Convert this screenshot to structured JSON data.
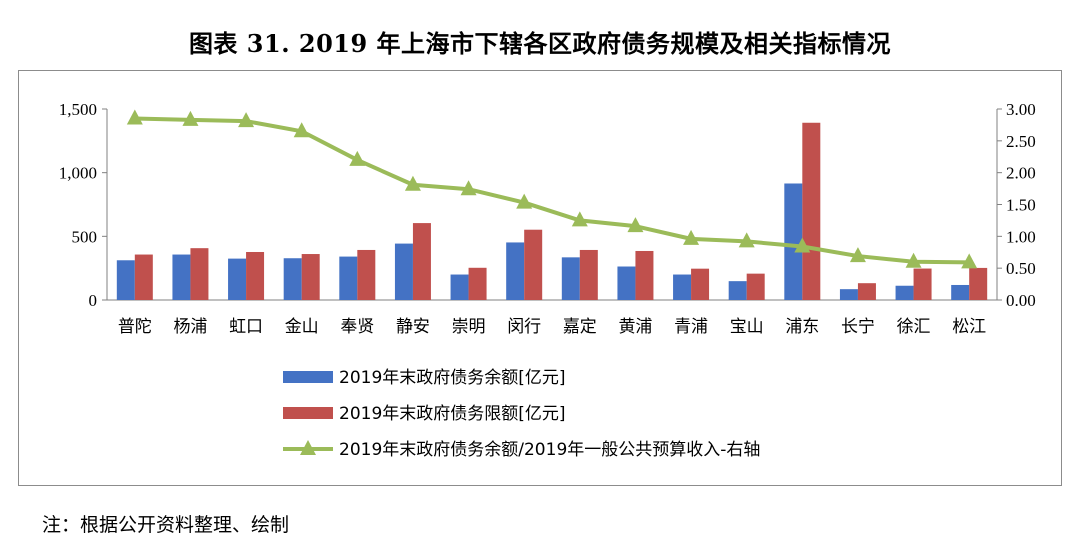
{
  "title": "图表 31. 2019 年上海市下辖各区政府债务规模及相关指标情况",
  "note": "注：根据公开资料整理、绘制",
  "chart_data": {
    "type": "bar",
    "categories": [
      "普陀",
      "杨浦",
      "虹口",
      "金山",
      "奉贤",
      "静安",
      "崇明",
      "闵行",
      "嘉定",
      "黄浦",
      "青浦",
      "宝山",
      "浦东",
      "长宁",
      "徐汇",
      "松江"
    ],
    "series": [
      {
        "name": "2019年末政府债务余额[亿元]",
        "type": "bar",
        "axis": "left",
        "color": "#4472C4",
        "values": [
          312,
          357,
          325,
          328,
          341,
          443,
          200,
          452,
          335,
          263,
          200,
          148,
          915,
          85,
          112,
          118
        ]
      },
      {
        "name": "2019年末政府债务限额[亿元]",
        "type": "bar",
        "axis": "left",
        "color": "#C0504D",
        "values": [
          357,
          407,
          377,
          361,
          393,
          604,
          253,
          552,
          393,
          385,
          246,
          207,
          1392,
          132,
          247,
          252
        ]
      },
      {
        "name": "2019年末政府债务余额/2019年一般公共预算收入-右轴",
        "type": "line",
        "axis": "right",
        "color": "#9BBB59",
        "values": [
          2.85,
          2.83,
          2.81,
          2.65,
          2.2,
          1.81,
          1.74,
          1.53,
          1.25,
          1.16,
          0.96,
          0.92,
          0.84,
          0.69,
          0.6,
          0.59
        ]
      }
    ],
    "y_left": {
      "ticks": [
        "0",
        "500",
        "1,000",
        "1,500"
      ],
      "ylim": [
        0,
        1500
      ]
    },
    "y_right": {
      "ticks": [
        "0.00",
        "0.50",
        "1.00",
        "1.50",
        "2.00",
        "2.50",
        "3.00"
      ],
      "ylim": [
        0,
        3
      ]
    },
    "legend_position": "bottom"
  }
}
